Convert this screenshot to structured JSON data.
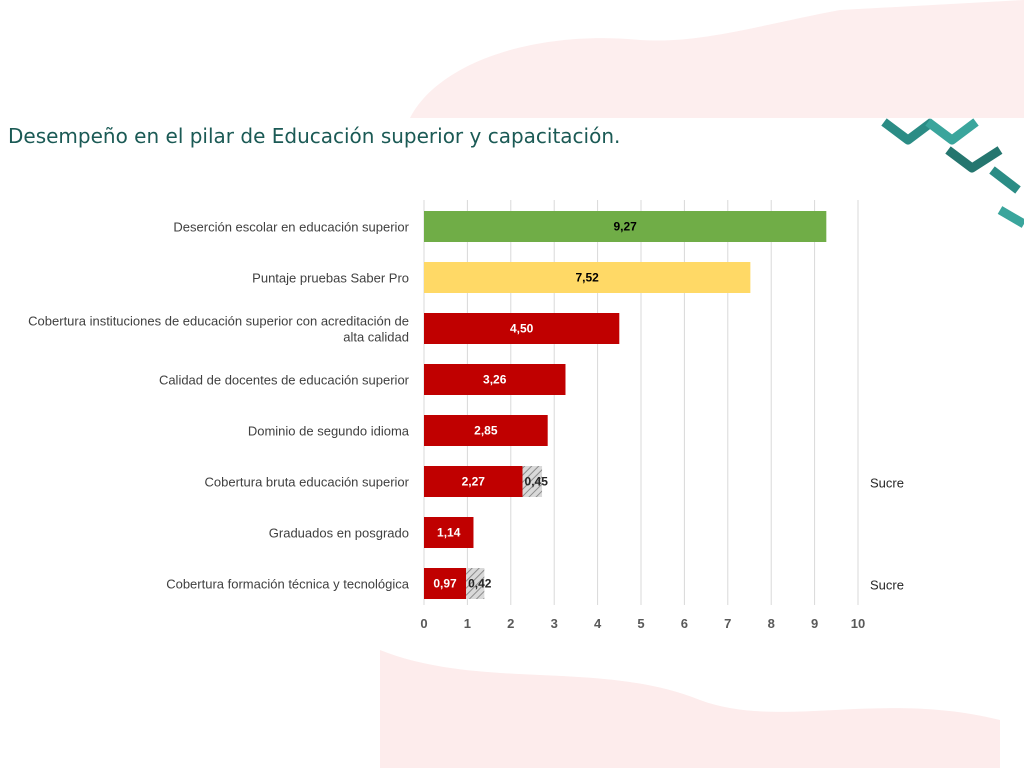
{
  "page": {
    "title": "Desempeño en el pilar de Educación superior y capacitación."
  },
  "colors": {
    "green": "#70ad47",
    "yellow": "#ffd966",
    "red": "#c00000",
    "hatch": "#a6a6a6",
    "title": "#1b5a55",
    "accent_teal": "#2b8c85",
    "accent_pink": "#fbe3e3"
  },
  "chart_data": {
    "type": "bar",
    "orientation": "horizontal",
    "stacked": true,
    "title": "",
    "xlabel": "",
    "ylabel": "",
    "xlim": [
      0,
      10
    ],
    "xticks": [
      "0",
      "1",
      "2",
      "3",
      "4",
      "5",
      "6",
      "7",
      "8",
      "9",
      "10"
    ],
    "grid": true,
    "legend": "none",
    "categories": [
      [
        "Deserción escolar en educación superior"
      ],
      [
        "Puntaje pruebas Saber Pro"
      ],
      [
        "Cobertura instituciones de educación superior con acreditación de",
        "alta calidad"
      ],
      [
        "Calidad de docentes de educación superior"
      ],
      [
        "Dominio de segundo idioma"
      ],
      [
        "Cobertura bruta educación superior"
      ],
      [
        "Graduados en posgrado"
      ],
      [
        "Cobertura formación técnica y tecnológica"
      ]
    ],
    "series": [
      {
        "values": [
          9.27,
          7.52,
          4.5,
          3.26,
          2.85,
          2.27,
          1.14,
          0.97
        ],
        "labels": [
          "9,27",
          "7,52",
          "4,50",
          "3,26",
          "2,85",
          "2,27",
          "1,14",
          "0,97"
        ],
        "colors": [
          "#70ad47",
          "#ffd966",
          "#c00000",
          "#c00000",
          "#c00000",
          "#c00000",
          "#c00000",
          "#c00000"
        ]
      },
      {
        "pattern": "hatched",
        "values": [
          0,
          0,
          0,
          0,
          0,
          0.45,
          0,
          0.42
        ],
        "labels": [
          "",
          "",
          "",
          "",
          "",
          "0,45",
          "",
          "0,42"
        ]
      }
    ],
    "side_notes": [
      "",
      "",
      "",
      "",
      "",
      "Sucre",
      "",
      "Sucre"
    ]
  }
}
